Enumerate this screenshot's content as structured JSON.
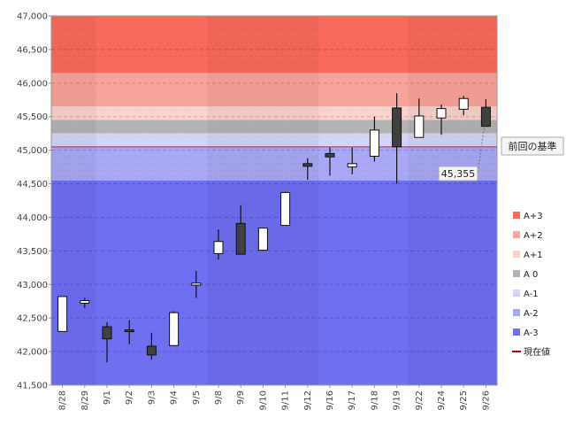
{
  "chart_data": {
    "type": "candlestick",
    "categories": [
      "8/28",
      "8/29",
      "9/1",
      "9/2",
      "9/3",
      "9/4",
      "9/5",
      "9/8",
      "9/9",
      "9/10",
      "9/11",
      "9/12",
      "9/16",
      "9/17",
      "9/18",
      "9/19",
      "9/22",
      "9/24",
      "9/25",
      "9/26"
    ],
    "candles": [
      {
        "open": 42300,
        "high": 42820,
        "low": 42300,
        "close": 42820
      },
      {
        "open": 42720,
        "high": 42800,
        "low": 42650,
        "close": 42760
      },
      {
        "open": 42370,
        "high": 42440,
        "low": 41840,
        "close": 42190
      },
      {
        "open": 42310,
        "high": 42470,
        "low": 42110,
        "close": 42300
      },
      {
        "open": 42080,
        "high": 42280,
        "low": 41880,
        "close": 41950
      },
      {
        "open": 42090,
        "high": 42600,
        "low": 42090,
        "close": 42580
      },
      {
        "open": 42990,
        "high": 43200,
        "low": 42800,
        "close": 43020
      },
      {
        "open": 43460,
        "high": 43820,
        "low": 43370,
        "close": 43640
      },
      {
        "open": 43910,
        "high": 44180,
        "low": 43450,
        "close": 43450
      },
      {
        "open": 43510,
        "high": 43840,
        "low": 43510,
        "close": 43840
      },
      {
        "open": 43880,
        "high": 44380,
        "low": 43880,
        "close": 44370
      },
      {
        "open": 44800,
        "high": 44880,
        "low": 44560,
        "close": 44760
      },
      {
        "open": 44950,
        "high": 45040,
        "low": 44620,
        "close": 44900
      },
      {
        "open": 44750,
        "high": 45040,
        "low": 44640,
        "close": 44800
      },
      {
        "open": 44910,
        "high": 45500,
        "low": 44830,
        "close": 45300
      },
      {
        "open": 45630,
        "high": 45850,
        "low": 44500,
        "close": 45050
      },
      {
        "open": 45190,
        "high": 45770,
        "low": 45190,
        "close": 45510
      },
      {
        "open": 45480,
        "high": 45680,
        "low": 45230,
        "close": 45620
      },
      {
        "open": 45610,
        "high": 45810,
        "low": 45520,
        "close": 45770
      },
      {
        "open": 45640,
        "high": 45760,
        "low": 45350,
        "close": 45355
      }
    ],
    "ylim": [
      41500,
      47000
    ],
    "yticks": [
      "41,500",
      "42,000",
      "42,500",
      "43,000",
      "43,500",
      "44,000",
      "44,500",
      "45,000",
      "45,500",
      "46,000",
      "46,500",
      "47,000"
    ],
    "grid": true,
    "legend_position": "right",
    "zones": [
      {
        "name": "A+3",
        "from": 46150,
        "to": 47000,
        "color": "#f96a5a"
      },
      {
        "name": "A+2",
        "from": 45650,
        "to": 46150,
        "color": "#f9a49a"
      },
      {
        "name": "A+1",
        "from": 45450,
        "to": 45650,
        "color": "#fbd2cc"
      },
      {
        "name": "A 0",
        "from": 45250,
        "to": 45450,
        "color": "#b4b4b4"
      },
      {
        "name": "A-1",
        "from": 45050,
        "to": 45250,
        "color": "#d4d4f6"
      },
      {
        "name": "A-2",
        "from": 44550,
        "to": 45050,
        "color": "#a8a8f6"
      },
      {
        "name": "A-3",
        "from": 41500,
        "to": 44550,
        "color": "#6f6ff2"
      }
    ],
    "reference_line": {
      "label": "前回の基準",
      "value": 45050,
      "color": "#d81e1e"
    },
    "current_value": {
      "label": "現在値",
      "value": 45355,
      "text": "45,355",
      "color": "#b00000"
    },
    "bullish_color": "#ffffff",
    "bearish_color": "#404040"
  }
}
